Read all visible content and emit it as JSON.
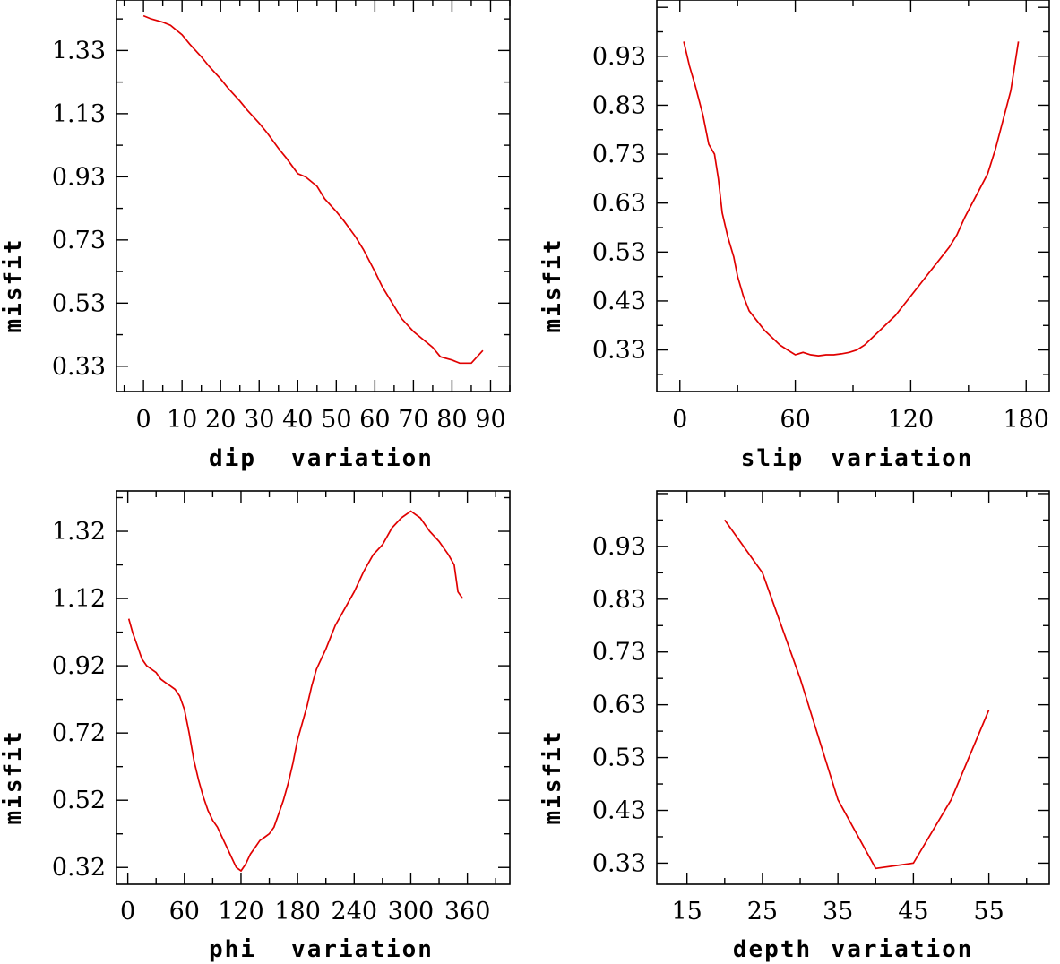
{
  "chart_data": [
    {
      "type": "line",
      "ylabel": "misfit",
      "xlabel_left": "dip",
      "xlabel_right": "variation",
      "xlim": [
        -7,
        95
      ],
      "ylim": [
        0.25,
        1.49
      ],
      "xticks": [
        0,
        10,
        20,
        30,
        40,
        50,
        60,
        70,
        80,
        90
      ],
      "xtick_labels": [
        "0",
        "10",
        "20",
        "30",
        "40",
        "50",
        "60",
        "70",
        "80",
        "90"
      ],
      "yticks": [
        0.33,
        0.53,
        0.73,
        0.93,
        1.13,
        1.33
      ],
      "ytick_labels": [
        "0.33",
        "0.53",
        "0.73",
        "0.93",
        "1.13",
        "1.33"
      ],
      "series": [
        {
          "name": "misfit",
          "x": [
            0,
            2,
            5,
            7,
            10,
            12,
            15,
            17,
            20,
            22,
            25,
            27,
            30,
            32,
            35,
            37,
            40,
            42,
            45,
            47,
            50,
            52,
            55,
            57,
            60,
            62,
            65,
            67,
            70,
            72,
            75,
            77,
            80,
            82,
            85,
            88
          ],
          "y": [
            1.44,
            1.43,
            1.42,
            1.41,
            1.38,
            1.35,
            1.31,
            1.28,
            1.24,
            1.21,
            1.17,
            1.14,
            1.1,
            1.07,
            1.02,
            0.99,
            0.94,
            0.93,
            0.9,
            0.86,
            0.82,
            0.79,
            0.74,
            0.7,
            0.63,
            0.58,
            0.52,
            0.48,
            0.44,
            0.42,
            0.39,
            0.36,
            0.35,
            0.34,
            0.34,
            0.38
          ]
        }
      ]
    },
    {
      "type": "line",
      "ylabel": "misfit",
      "xlabel_left": "slip",
      "xlabel_right": "variation",
      "xlim": [
        -12,
        192
      ],
      "ylim": [
        0.245,
        1.045
      ],
      "xticks": [
        0,
        60,
        120,
        180
      ],
      "xtick_labels": [
        "0",
        "60",
        "120",
        "180"
      ],
      "yticks": [
        0.33,
        0.43,
        0.53,
        0.63,
        0.73,
        0.83,
        0.93
      ],
      "ytick_labels": [
        "0.33",
        "0.43",
        "0.53",
        "0.63",
        "0.73",
        "0.83",
        "0.93"
      ],
      "series": [
        {
          "name": "misfit",
          "x": [
            2,
            5,
            8,
            12,
            15,
            18,
            20,
            22,
            25,
            28,
            30,
            33,
            36,
            40,
            44,
            48,
            52,
            56,
            60,
            64,
            68,
            72,
            76,
            80,
            84,
            88,
            92,
            96,
            100,
            104,
            108,
            112,
            116,
            120,
            124,
            128,
            132,
            136,
            140,
            144,
            148,
            152,
            156,
            160,
            164,
            168,
            172,
            176
          ],
          "y": [
            0.96,
            0.91,
            0.87,
            0.81,
            0.75,
            0.73,
            0.68,
            0.61,
            0.56,
            0.52,
            0.48,
            0.44,
            0.41,
            0.39,
            0.37,
            0.355,
            0.34,
            0.33,
            0.32,
            0.325,
            0.32,
            0.318,
            0.32,
            0.32,
            0.322,
            0.325,
            0.33,
            0.34,
            0.355,
            0.37,
            0.385,
            0.4,
            0.42,
            0.44,
            0.46,
            0.48,
            0.5,
            0.52,
            0.54,
            0.565,
            0.6,
            0.63,
            0.66,
            0.69,
            0.74,
            0.8,
            0.86,
            0.96
          ]
        }
      ]
    },
    {
      "type": "line",
      "ylabel": "misfit",
      "xlabel_left": "phi",
      "xlabel_right": "variation",
      "xlim": [
        -12,
        405
      ],
      "ylim": [
        0.27,
        1.44
      ],
      "xticks": [
        0,
        60,
        120,
        180,
        240,
        300,
        360
      ],
      "xtick_labels": [
        "0",
        "60",
        "120",
        "180",
        "240",
        "300",
        "360"
      ],
      "yticks": [
        0.32,
        0.52,
        0.72,
        0.92,
        1.12,
        1.32
      ],
      "ytick_labels": [
        "0.32",
        "0.52",
        "0.72",
        "0.92",
        "1.12",
        "1.32"
      ],
      "series": [
        {
          "name": "misfit",
          "x": [
            1,
            5,
            10,
            15,
            20,
            25,
            30,
            35,
            40,
            45,
            50,
            55,
            60,
            65,
            70,
            75,
            80,
            85,
            90,
            95,
            100,
            105,
            110,
            115,
            120,
            125,
            130,
            135,
            140,
            145,
            150,
            155,
            160,
            165,
            170,
            175,
            180,
            185,
            190,
            195,
            200,
            210,
            220,
            230,
            240,
            250,
            260,
            270,
            280,
            290,
            300,
            305,
            310,
            320,
            330,
            340,
            346,
            350,
            355
          ],
          "y": [
            1.06,
            1.02,
            0.98,
            0.94,
            0.92,
            0.91,
            0.9,
            0.88,
            0.87,
            0.86,
            0.85,
            0.83,
            0.79,
            0.72,
            0.64,
            0.58,
            0.53,
            0.49,
            0.46,
            0.44,
            0.41,
            0.38,
            0.35,
            0.32,
            0.31,
            0.33,
            0.36,
            0.38,
            0.4,
            0.41,
            0.42,
            0.44,
            0.48,
            0.52,
            0.57,
            0.63,
            0.7,
            0.75,
            0.8,
            0.86,
            0.91,
            0.97,
            1.04,
            1.09,
            1.14,
            1.2,
            1.25,
            1.28,
            1.33,
            1.36,
            1.38,
            1.37,
            1.36,
            1.32,
            1.29,
            1.25,
            1.22,
            1.14,
            1.12
          ]
        }
      ]
    },
    {
      "type": "line",
      "ylabel": "misfit",
      "xlabel_left": "depth",
      "xlabel_right": "variation",
      "xlim": [
        11,
        63
      ],
      "ylim": [
        0.29,
        1.035
      ],
      "xticks": [
        15,
        25,
        35,
        45,
        55
      ],
      "xtick_labels": [
        "15",
        "25",
        "35",
        "45",
        "55"
      ],
      "yticks": [
        0.33,
        0.43,
        0.53,
        0.63,
        0.73,
        0.83,
        0.93
      ],
      "ytick_labels": [
        "0.33",
        "0.43",
        "0.53",
        "0.63",
        "0.73",
        "0.83",
        "0.93"
      ],
      "series": [
        {
          "name": "misfit",
          "x": [
            20,
            25,
            30,
            35,
            40,
            45,
            50,
            55
          ],
          "y": [
            0.98,
            0.88,
            0.68,
            0.45,
            0.32,
            0.33,
            0.45,
            0.62
          ]
        }
      ]
    }
  ]
}
